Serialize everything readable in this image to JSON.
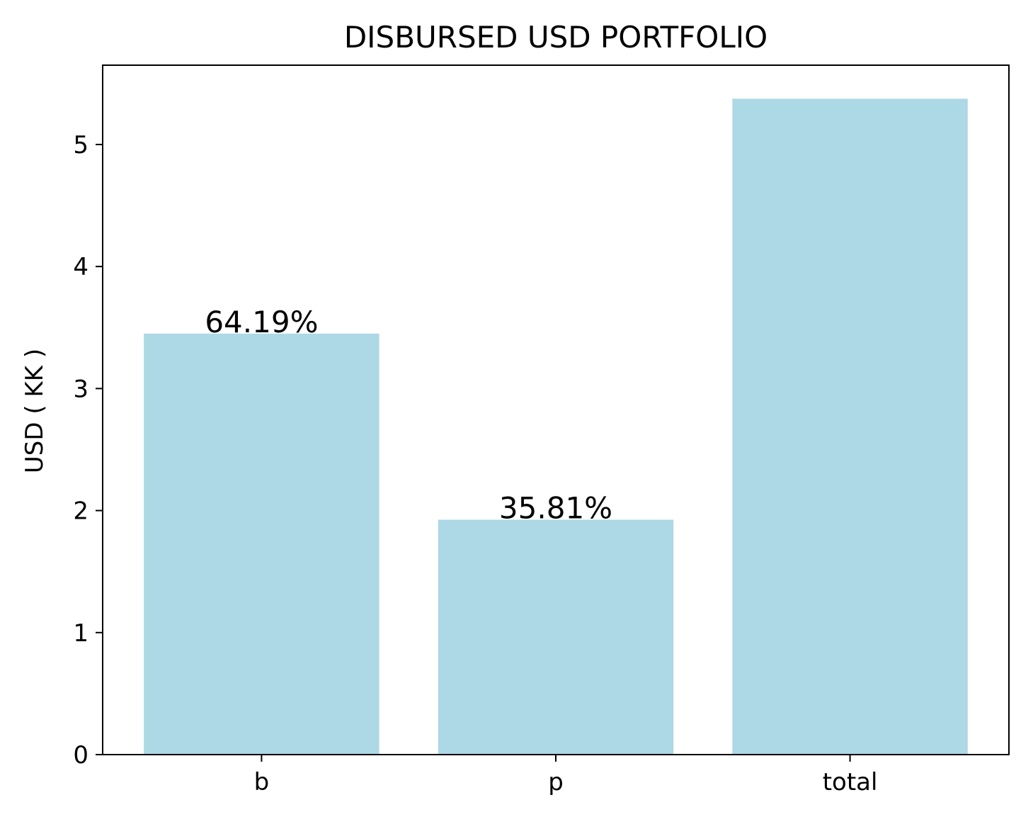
{
  "chart_data": {
    "type": "bar",
    "title": "DISBURSED USD PORTFOLIO",
    "xlabel": "",
    "ylabel": "USD ( KK )",
    "categories": [
      "b",
      "p",
      "total"
    ],
    "values": [
      3.45,
      1.925,
      5.375
    ],
    "data_labels": [
      "64.19%",
      "35.81%",
      ""
    ],
    "ylim": [
      0,
      5.65
    ],
    "yticks": [
      0,
      1,
      2,
      3,
      4,
      5
    ],
    "grid": false,
    "legend": "none",
    "bar_color": "#add8e6",
    "axis_color": "#000000"
  }
}
